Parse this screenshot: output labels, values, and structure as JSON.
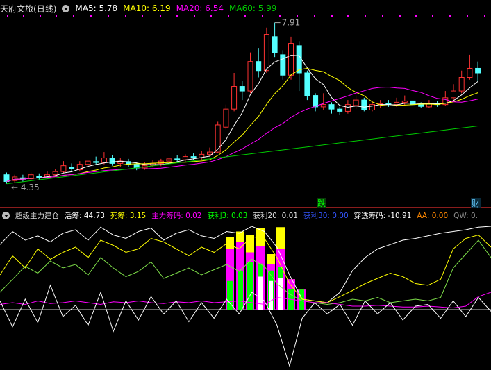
{
  "main_header": {
    "stock_name": "天府文旅",
    "period": "(日线)",
    "ma5_label": "MA5: 5.78",
    "ma10_label": "MA10: 6.19",
    "ma20_label": "MA20: 6.54",
    "ma60_label": "MA60: 5.99"
  },
  "indicator_header": {
    "name": "超级主力建仓",
    "items": [
      {
        "label": "活筹: 44.73",
        "color": "#ffffff"
      },
      {
        "label": "死筹: 3.15",
        "color": "#ffff00"
      },
      {
        "label": "主力筹码: 0.02",
        "color": "#ff00ff"
      },
      {
        "label": "获利3: 0.03",
        "color": "#00ff00"
      },
      {
        "label": "获利20: 0.01",
        "color": "#dddddd"
      },
      {
        "label": "获利30: 0.00",
        "color": "#3355ff"
      },
      {
        "label": "穿透筹码: -10.91",
        "color": "#ffffff"
      },
      {
        "label": "AA: 0.00",
        "color": "#ff8800"
      },
      {
        "label": "QW: 0.",
        "color": "#888888"
      }
    ]
  },
  "annotations": {
    "high_label": "7.91",
    "low_label": "4.35",
    "marker_die": "跌",
    "marker_cai": "财"
  },
  "colors": {
    "up": "#ff3232",
    "down": "#54ffff",
    "ma5": "#ffffff",
    "ma10": "#ffff00",
    "ma20": "#ff00ff",
    "ma60": "#00cc00",
    "magenta": "#ff00ff",
    "yellow": "#ffff00",
    "green": "#00ff00",
    "white": "#ffffff"
  }
}
